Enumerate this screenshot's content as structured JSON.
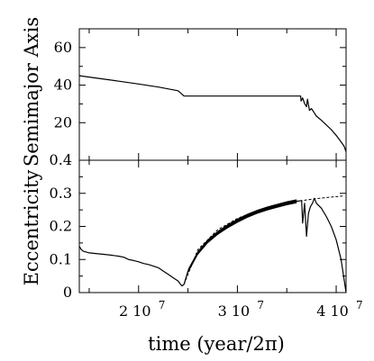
{
  "chart_data": [
    {
      "type": "line",
      "panel": "top",
      "ylabel": "Semimajor Axis",
      "xlabel": "",
      "xlim": [
        14000000.0,
        41000000.0
      ],
      "ylim": [
        0,
        70
      ],
      "yticks": [
        20,
        40,
        60
      ],
      "ytick_labels": [
        "20",
        "40",
        "60"
      ],
      "series": [
        {
          "x": [
            14000000.0,
            16000000.0,
            18000000.0,
            20000000.0,
            22000000.0,
            24000000.0,
            24600000.0,
            28000000.0,
            32000000.0,
            36000000.0,
            36400000.0,
            36450000.0,
            36600000.0,
            36800000.0,
            37000000.0,
            37100000.0,
            37300000.0,
            37500000.0,
            38000000.0,
            38500000.0,
            39000000.0,
            39500000.0,
            40000000.0,
            40400000.0,
            40800000.0,
            41000000.0
          ],
          "y": [
            45,
            43.6,
            42.1,
            40.6,
            39.0,
            37.0,
            34.2,
            34.2,
            34.2,
            34.2,
            34.2,
            31.5,
            33.2,
            30.2,
            28.5,
            32.5,
            26.5,
            27.5,
            23.5,
            21.3,
            18.8,
            16.3,
            13.3,
            10.5,
            7.5,
            4.5
          ]
        }
      ]
    },
    {
      "type": "line",
      "panel": "bottom",
      "ylabel": "Eccentricity",
      "xlabel": "time (year/2π)",
      "xlim": [
        14000000.0,
        41000000.0
      ],
      "ylim": [
        0,
        0.4
      ],
      "yticks": [
        0,
        0.1,
        0.2,
        0.3,
        0.4
      ],
      "ytick_labels": [
        "0",
        "0.1",
        "0.2",
        "0.3",
        "0.4"
      ],
      "xticks": [
        20000000.0,
        30000000.0,
        40000000.0
      ],
      "xtick_labels": [
        "2 10",
        "3 10",
        "4 10"
      ],
      "xtick_exponent": "7",
      "series": [
        {
          "x": [
            14000000.0,
            14200000.0,
            14400000.0,
            15000000.0,
            16000000.0,
            17000000.0,
            18000000.0,
            18500000.0,
            19000000.0,
            19500000.0,
            20000000.0,
            20500000.0,
            21000000.0,
            21500000.0,
            22000000.0,
            22500000.0,
            23000000.0,
            23500000.0,
            24000000.0,
            24200000.0,
            24400000.0,
            24600000.0,
            25000000.0,
            26000000.0,
            27000000.0,
            28000000.0,
            29000000.0,
            30000000.0,
            31000000.0,
            32000000.0,
            33000000.0,
            34000000.0,
            35000000.0,
            36000000.0,
            36500000.0,
            36600000.0,
            36800000.0,
            37000000.0,
            37200000.0,
            37400000.0,
            37600000.0,
            37800000.0,
            38000000.0,
            38500000.0,
            39000000.0,
            39500000.0,
            40000000.0,
            40500000.0,
            41000000.0
          ],
          "y": [
            0.14,
            0.13,
            0.125,
            0.12,
            0.117,
            0.114,
            0.11,
            0.107,
            0.1,
            0.097,
            0.093,
            0.088,
            0.085,
            0.08,
            0.075,
            0.065,
            0.055,
            0.045,
            0.035,
            0.027,
            0.02,
            0.025,
            0.065,
            0.12,
            0.155,
            0.18,
            0.2,
            0.217,
            0.232,
            0.244,
            0.254,
            0.262,
            0.27,
            0.276,
            0.278,
            0.21,
            0.27,
            0.17,
            0.24,
            0.26,
            0.27,
            0.285,
            0.27,
            0.255,
            0.23,
            0.2,
            0.16,
            0.1,
            0.0
          ]
        },
        {
          "style": "dashed",
          "x": [
            24600000.0,
            26000000.0,
            28000000.0,
            30000000.0,
            32000000.0,
            34000000.0,
            36000000.0,
            38000000.0,
            40000000.0,
            40700000.0
          ],
          "y": [
            0.025,
            0.13,
            0.19,
            0.224,
            0.248,
            0.265,
            0.276,
            0.284,
            0.29,
            0.292
          ]
        }
      ]
    }
  ]
}
